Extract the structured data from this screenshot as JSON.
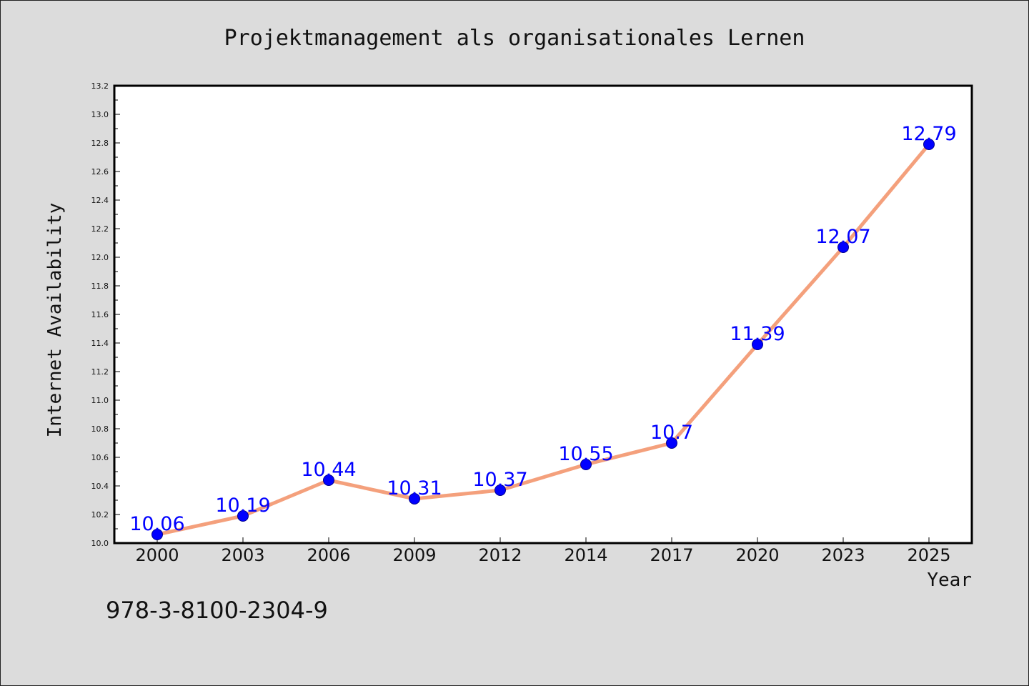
{
  "chart_data": {
    "type": "line",
    "title": "Projektmanagement als organisationales Lernen",
    "xlabel": "Year",
    "ylabel": "Internet Availability",
    "x": [
      "2000",
      "2003",
      "2006",
      "2009",
      "2012",
      "2014",
      "2017",
      "2020",
      "2023",
      "2025"
    ],
    "series": [
      {
        "values": [
          10.06,
          10.19,
          10.44,
          10.31,
          10.37,
          10.55,
          10.7,
          11.39,
          12.07,
          12.79
        ],
        "data_labels": [
          "10.06",
          "10.19",
          "10.44",
          "10.31",
          "10.37",
          "10.55",
          "10.7",
          "11.39",
          "12.07",
          "12.79"
        ],
        "line_color": "#f4a07c",
        "marker_color": "#0000ff"
      }
    ],
    "ylim": [
      10.0,
      13.2
    ],
    "yticks": [
      "10.0",
      "10.2",
      "10.4",
      "10.6",
      "10.8",
      "11.0",
      "11.2",
      "11.4",
      "11.6",
      "11.8",
      "12.0",
      "12.2",
      "12.4",
      "12.6",
      "12.8",
      "13.0",
      "13.2"
    ],
    "grid": false,
    "legend": "none"
  },
  "footer": {
    "isbn": "978-3-8100-2304-9"
  }
}
